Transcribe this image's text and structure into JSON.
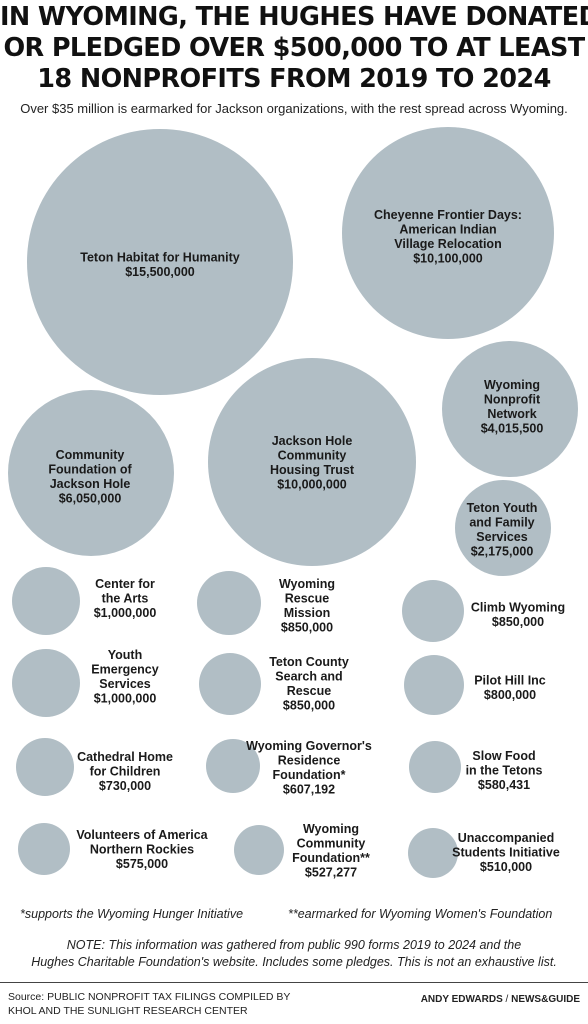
{
  "title_lines": [
    "IN WYOMING, THE HUGHES HAVE DONATED",
    "OR PLEDGED OVER $500,000 TO AT LEAST",
    "18 NONPROFITS FROM 2019 TO 2024"
  ],
  "subtitle": "Over $35 million is earmarked for Jackson organizations, with the rest spread across Wyoming.",
  "colors": {
    "bubble": "#b1bec5",
    "text": "#1a1a1a"
  },
  "chart_data": {
    "type": "bubble",
    "value_unit": "USD",
    "items": [
      {
        "lines": [
          "Teton Habitat for Humanity",
          "$15,500,000"
        ],
        "value": 15500000
      },
      {
        "lines": [
          "Cheyenne Frontier Days:",
          "American Indian",
          "Village Relocation",
          "$10,100,000"
        ],
        "value": 10100000
      },
      {
        "lines": [
          "Jackson Hole",
          "Community",
          "Housing Trust",
          "$10,000,000"
        ],
        "value": 10000000
      },
      {
        "lines": [
          "Community",
          "Foundation of",
          "Jackson Hole",
          "$6,050,000"
        ],
        "value": 6050000
      },
      {
        "lines": [
          "Wyoming",
          "Nonprofit",
          "Network",
          "$4,015,500"
        ],
        "value": 4015500
      },
      {
        "lines": [
          "Teton Youth",
          "and Family",
          "Services",
          "$2,175,000"
        ],
        "value": 2175000
      },
      {
        "lines": [
          "Center for",
          "the Arts",
          "$1,000,000"
        ],
        "value": 1000000
      },
      {
        "lines": [
          "Wyoming",
          "Rescue",
          "Mission",
          "$850,000"
        ],
        "value": 850000
      },
      {
        "lines": [
          "Climb Wyoming",
          "$850,000"
        ],
        "value": 850000
      },
      {
        "lines": [
          "Youth",
          "Emergency",
          "Services",
          "$1,000,000"
        ],
        "value": 1000000
      },
      {
        "lines": [
          "Teton County",
          "Search and",
          "Rescue",
          "$850,000"
        ],
        "value": 850000
      },
      {
        "lines": [
          "Pilot Hill Inc",
          "$800,000"
        ],
        "value": 800000
      },
      {
        "lines": [
          "Cathedral Home",
          "for Children",
          "$730,000"
        ],
        "value": 730000
      },
      {
        "lines": [
          "Wyoming Governor's",
          "Residence",
          "Foundation*",
          "$607,192"
        ],
        "value": 607192
      },
      {
        "lines": [
          "Slow Food",
          "in the Tetons",
          "$580,431"
        ],
        "value": 580431
      },
      {
        "lines": [
          "Volunteers of America",
          "Northern Rockies",
          "$575,000"
        ],
        "value": 575000
      },
      {
        "lines": [
          "Wyoming",
          "Community",
          "Foundation**",
          "$527,277"
        ],
        "value": 527277
      },
      {
        "lines": [
          "Unaccompanied",
          "Students Initiative",
          "$510,000"
        ],
        "value": 510000
      }
    ]
  },
  "footnotes": [
    "*supports the Wyoming Hunger Initiative",
    "**earmarked for Wyoming Women's Foundation"
  ],
  "note_lines": [
    "NOTE: This information was gathered from public 990 forms 2019 to 2024 and the",
    "Hughes Charitable Foundation's website. Includes some pledges. This is not an exhaustive list."
  ],
  "source_lines": [
    "Source: PUBLIC NONPROFIT TAX FILINGS COMPILED BY",
    "KHOL AND THE SUNLIGHT RESEARCH CENTER"
  ],
  "credit": {
    "author": "ANDY EDWARDS",
    "separator": " / ",
    "outlet": "NEWS&GUIDE"
  }
}
